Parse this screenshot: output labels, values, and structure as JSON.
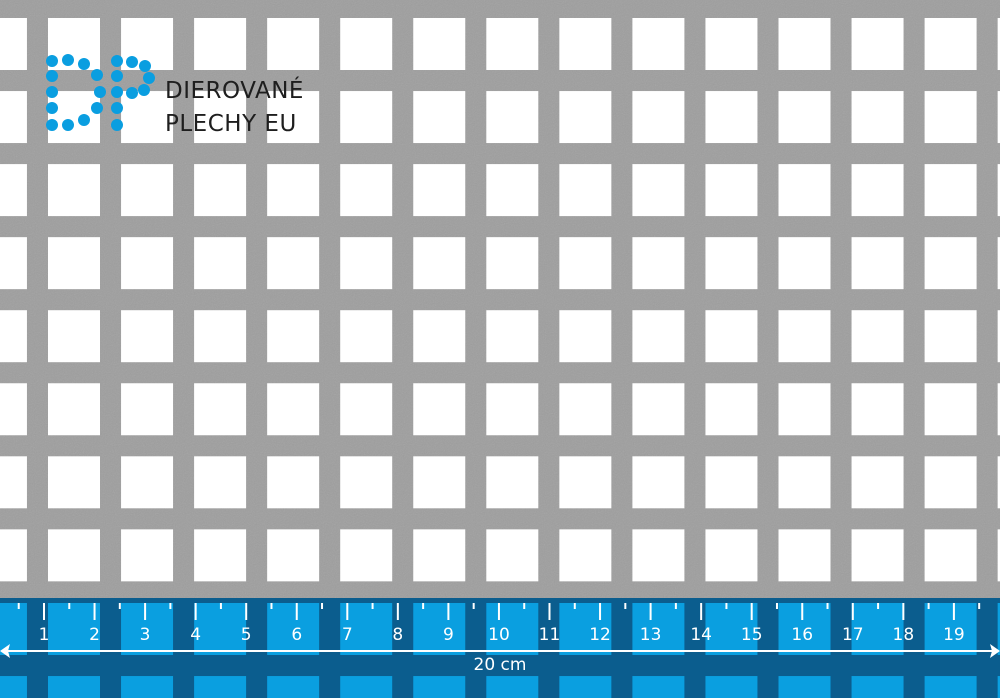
{
  "logo": {
    "monogram": "DP",
    "line1": "DIEROVANÉ",
    "line2": "PLECHY EU",
    "dot_color": "#0a9ee0"
  },
  "ruler": {
    "labels": [
      "1",
      "2",
      "3",
      "4",
      "5",
      "6",
      "7",
      "8",
      "9",
      "10",
      "11",
      "12",
      "13",
      "14",
      "15",
      "16",
      "17",
      "18",
      "19"
    ],
    "span_label": "20 cm",
    "band_color": "#0b5d8e",
    "hole_color": "#0a9fe0"
  },
  "sheet": {
    "metal_color": "#9e9e9e",
    "hole_color": "#ffffff",
    "hole_shape": "square"
  }
}
